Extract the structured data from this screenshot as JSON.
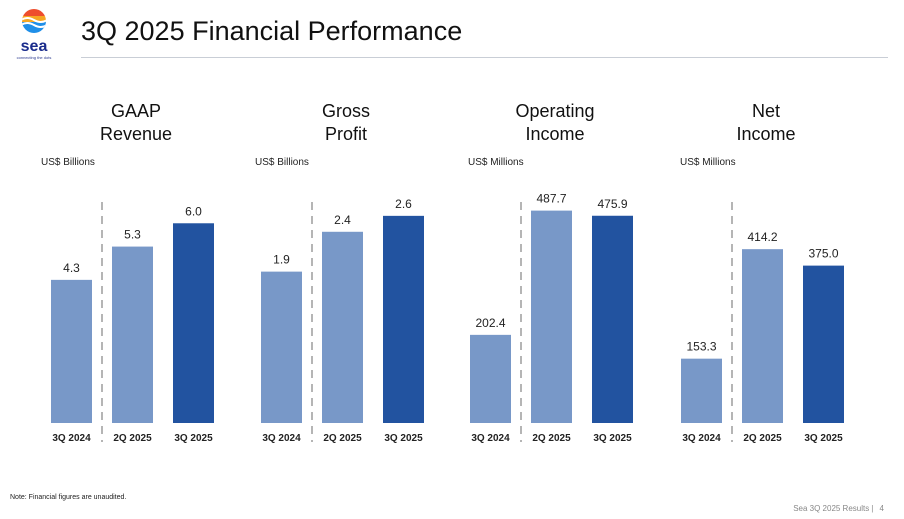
{
  "brand": {
    "name": "sea",
    "tagline": "connecting the dots",
    "logo_colors": [
      "#ee4d2d",
      "#f5a623",
      "#1f8fe8",
      "#1a2c8c"
    ]
  },
  "header": {
    "title": "3Q 2025 Financial Performance"
  },
  "note": "Note: Financial figures are unaudited.",
  "footer": {
    "text": "Sea 3Q 2025 Results",
    "separator": "|",
    "page": "4"
  },
  "colors": {
    "prior": "#7898c8",
    "current": "#2253a0",
    "divider": "#b5b5b5"
  },
  "chart_data": [
    {
      "type": "bar",
      "title": [
        "GAAP",
        "Revenue"
      ],
      "unit_label": "US$ Billions",
      "categories": [
        "3Q 2024",
        "2Q 2025",
        "3Q 2025"
      ],
      "values": [
        4.3,
        5.3,
        6.0
      ],
      "labels": [
        "4.3",
        "5.3",
        "6.0"
      ],
      "ylim": [
        0,
        7.3
      ],
      "highlight_index": 2,
      "divider_after": 0
    },
    {
      "type": "bar",
      "title": [
        "Gross",
        "Profit"
      ],
      "unit_label": "US$ Billions",
      "categories": [
        "3Q 2024",
        "2Q 2025",
        "3Q 2025"
      ],
      "values": [
        1.9,
        2.4,
        2.6
      ],
      "labels": [
        "1.9",
        "2.4",
        "2.6"
      ],
      "ylim": [
        0,
        3.05
      ],
      "highlight_index": 2,
      "divider_after": 0
    },
    {
      "type": "bar",
      "title": [
        "Operating",
        "Income"
      ],
      "unit_label": "US$ Millions",
      "categories": [
        "3Q 2024",
        "2Q 2025",
        "3Q 2025"
      ],
      "values": [
        202.4,
        487.7,
        475.9
      ],
      "labels": [
        "202.4",
        "487.7",
        "475.9"
      ],
      "ylim": [
        0,
        558
      ],
      "highlight_index": 2,
      "divider_after": 0
    },
    {
      "type": "bar",
      "title": [
        "Net",
        "Income"
      ],
      "unit_label": "US$ Millions",
      "categories": [
        "3Q 2024",
        "2Q 2025",
        "3Q 2025"
      ],
      "values": [
        153.3,
        414.2,
        375.0
      ],
      "labels": [
        "153.3",
        "414.2",
        "375.0"
      ],
      "ylim": [
        0,
        579
      ],
      "highlight_index": 2,
      "divider_after": 0
    }
  ]
}
